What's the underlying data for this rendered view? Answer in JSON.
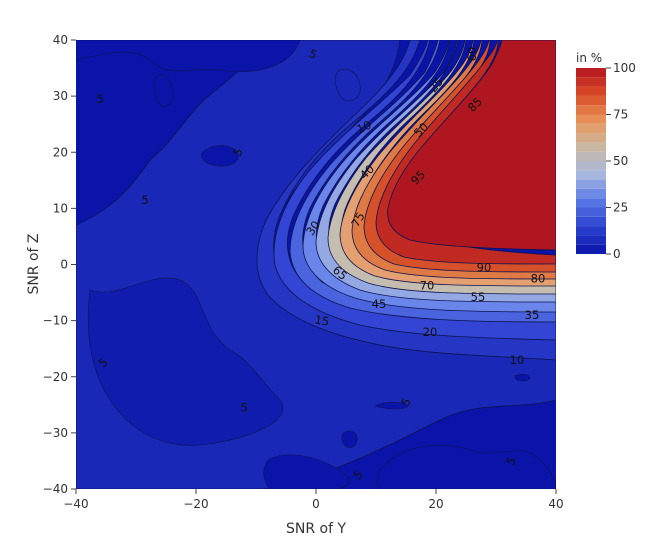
{
  "chart_data": {
    "type": "contour",
    "xlabel": "SNR of Y",
    "ylabel": "SNR of Z",
    "xlim": [
      -40,
      40
    ],
    "ylim": [
      -40,
      40
    ],
    "xticks": [
      "−40",
      "−20",
      "0",
      "20",
      "40"
    ],
    "yticks": [
      "−40",
      "−30",
      "−20",
      "−10",
      "0",
      "10",
      "20",
      "30",
      "40"
    ],
    "colorbar": {
      "title": "in %",
      "ticks": [
        "0",
        "25",
        "50",
        "75",
        "100"
      ],
      "range": [
        0,
        100
      ],
      "colorscale": [
        "#0a14a8",
        "#2a3fcf",
        "#5a78e6",
        "#a8b8de",
        "#c9b8a4",
        "#e8955a",
        "#d94b26",
        "#b31520"
      ]
    },
    "contour_levels": [
      5,
      10,
      15,
      20,
      25,
      30,
      35,
      40,
      45,
      50,
      55,
      60,
      65,
      70,
      75,
      80,
      85,
      90,
      95,
      100
    ],
    "contour_labels": [
      {
        "text": "5",
        "x": -0.5,
        "y": 37.5,
        "angle": 25
      },
      {
        "text": "5",
        "x": -36,
        "y": 29.5,
        "angle": 0
      },
      {
        "text": "5",
        "x": -13,
        "y": 20,
        "angle": -60
      },
      {
        "text": "5",
        "x": -28.5,
        "y": 11.5,
        "angle": 0
      },
      {
        "text": "5",
        "x": -35.5,
        "y": -17.5,
        "angle": -45
      },
      {
        "text": "5",
        "x": -12,
        "y": -25.5,
        "angle": 0
      },
      {
        "text": "5",
        "x": 15,
        "y": -24.5,
        "angle": -60
      },
      {
        "text": "5",
        "x": 7,
        "y": -37.5,
        "angle": -45
      },
      {
        "text": "5",
        "x": 32.5,
        "y": -35,
        "angle": -60
      },
      {
        "text": "10",
        "x": 8,
        "y": 24.5,
        "angle": -25
      },
      {
        "text": "25",
        "x": 20,
        "y": 32,
        "angle": -50
      },
      {
        "text": "60",
        "x": 26,
        "y": 37.5,
        "angle": -90
      },
      {
        "text": "85",
        "x": 26.5,
        "y": 28.5,
        "angle": -45
      },
      {
        "text": "50",
        "x": 17.5,
        "y": 24,
        "angle": -45
      },
      {
        "text": "40",
        "x": 8.5,
        "y": 16.5,
        "angle": -45
      },
      {
        "text": "95",
        "x": 17,
        "y": 15.5,
        "angle": -45
      },
      {
        "text": "30",
        "x": -0.5,
        "y": 6.5,
        "angle": -55
      },
      {
        "text": "75",
        "x": 7,
        "y": 8,
        "angle": -60
      },
      {
        "text": "65",
        "x": 4,
        "y": -1.5,
        "angle": 40
      },
      {
        "text": "90",
        "x": 28,
        "y": -0.5,
        "angle": 0
      },
      {
        "text": "80",
        "x": 37,
        "y": -2.5,
        "angle": 0
      },
      {
        "text": "70",
        "x": 18.5,
        "y": -3.7,
        "angle": 0
      },
      {
        "text": "55",
        "x": 27,
        "y": -5.8,
        "angle": 0
      },
      {
        "text": "45",
        "x": 10.5,
        "y": -7,
        "angle": 0
      },
      {
        "text": "35",
        "x": 36,
        "y": -9,
        "angle": 0
      },
      {
        "text": "15",
        "x": 1,
        "y": -10,
        "angle": 10
      },
      {
        "text": "20",
        "x": 19,
        "y": -12,
        "angle": 0
      },
      {
        "text": "10",
        "x": 33.5,
        "y": -17,
        "angle": 0
      }
    ]
  }
}
